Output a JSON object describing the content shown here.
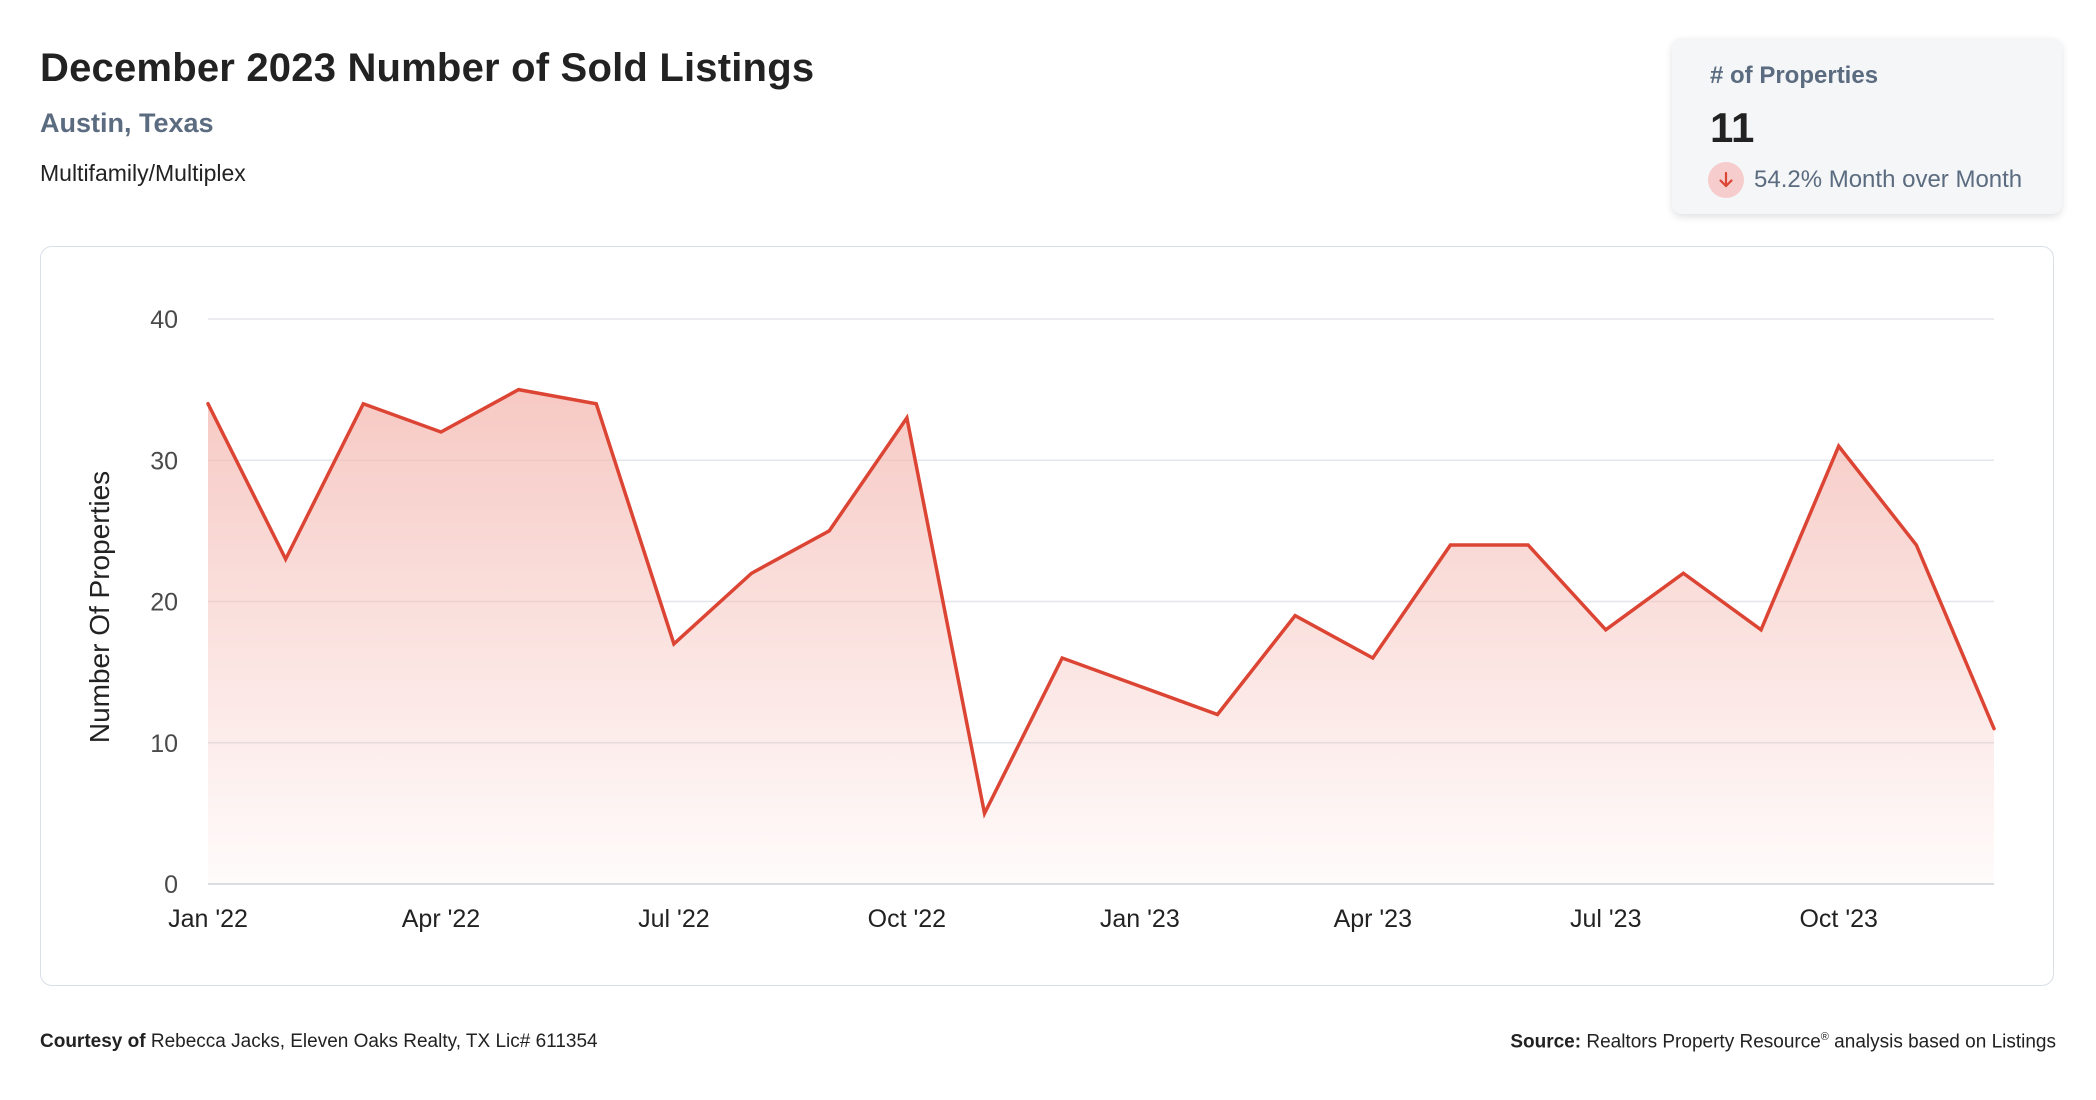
{
  "header": {
    "title": "December 2023 Number of Sold Listings",
    "location": "Austin, Texas",
    "property_type": "Multifamily/Multiplex"
  },
  "kpi": {
    "label": "# of Properties",
    "value": "11",
    "change_text": "54.2% Month over Month",
    "direction_icon": "arrow-down-icon"
  },
  "chart_data": {
    "type": "area",
    "ylabel": "Number Of Properties",
    "ylim": [
      0,
      40
    ],
    "yticks": [
      0,
      10,
      20,
      30,
      40
    ],
    "x_tick_labels": [
      "Jan '22",
      "Apr '22",
      "Jul '22",
      "Oct '22",
      "Jan '23",
      "Apr '23",
      "Jul '23",
      "Oct '23"
    ],
    "x_tick_positions": [
      0,
      3,
      6,
      9,
      12,
      15,
      18,
      21
    ],
    "series": [
      {
        "values": [
          34,
          23,
          34,
          32,
          35,
          34,
          17,
          22,
          25,
          33,
          5,
          16,
          14,
          12,
          19,
          16,
          24,
          24,
          18,
          22,
          18,
          31,
          24,
          11
        ]
      }
    ],
    "grid": true,
    "line_color": "#dc4434",
    "fill_color": "#f4b7b0"
  },
  "footer": {
    "courtesy_label": "Courtesy of",
    "courtesy_text": "Rebecca Jacks, Eleven Oaks Realty, TX Lic# 611354",
    "source_label": "Source:",
    "source_text_a": "Realtors Property Resource",
    "source_reg": "®",
    "source_text_b": " analysis based on Listings"
  }
}
